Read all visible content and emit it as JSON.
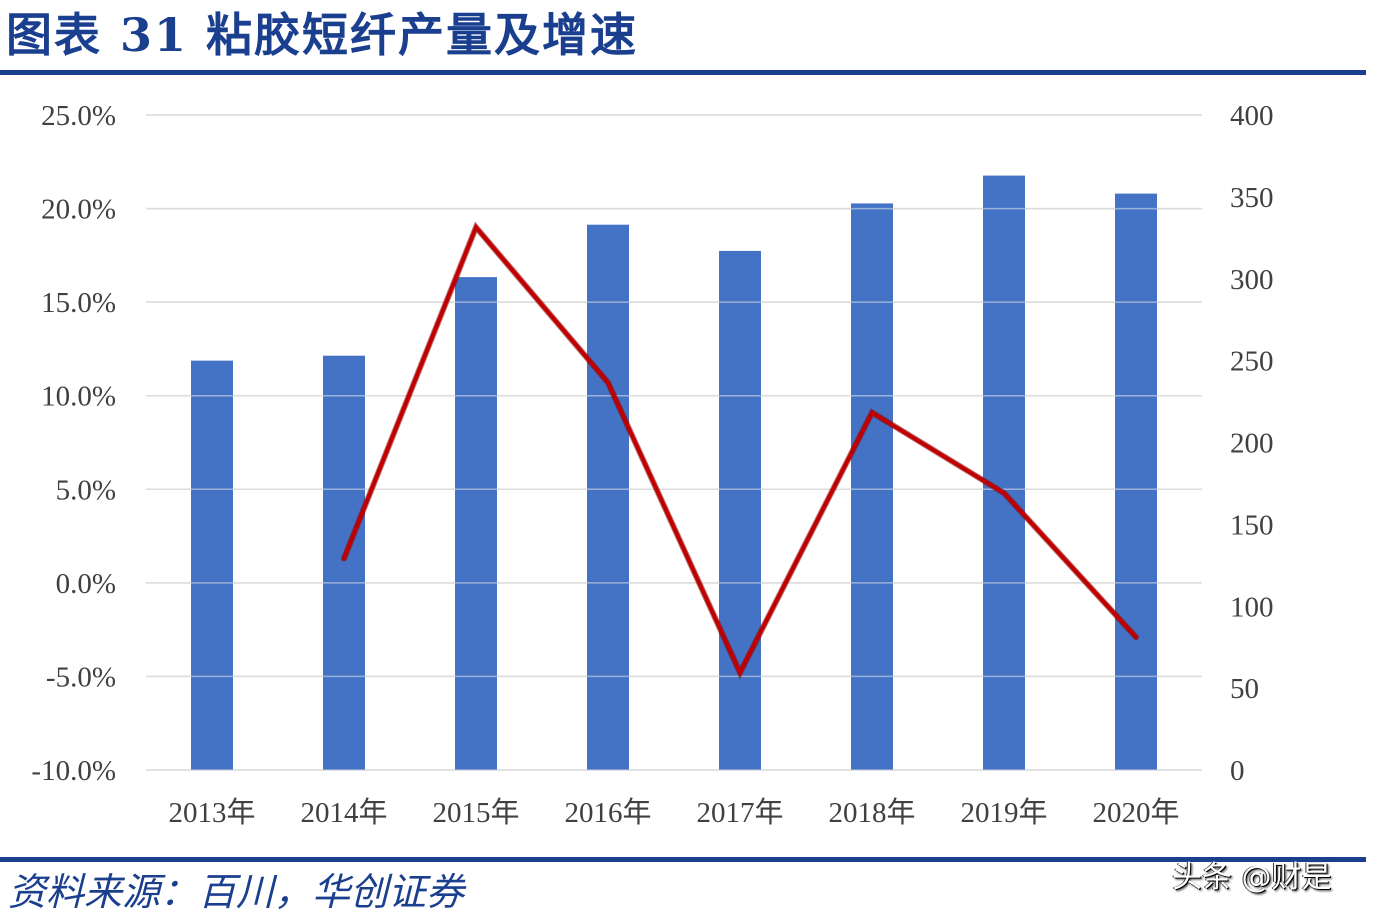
{
  "header": {
    "title": "图表 31  粘胶短纤产量及增速"
  },
  "footer": {
    "source": "资料来源：百川，华创证券",
    "watermark": "头条 @财是"
  },
  "colors": {
    "bar": "#4472C4",
    "line": "#C00000",
    "title": "#1B3F8F",
    "grid": "#D0D0D0"
  },
  "chart_data": {
    "type": "bar+line",
    "title": "粘胶短纤产量及增速",
    "categories": [
      "2013年",
      "2014年",
      "2015年",
      "2016年",
      "2017年",
      "2018年",
      "2019年",
      "2020年"
    ],
    "series": [
      {
        "name": "产量",
        "type": "bar",
        "axis": "right",
        "values": [
          250,
          253,
          301,
          333,
          317,
          346,
          363,
          352
        ]
      },
      {
        "name": "增速",
        "type": "line",
        "axis": "left",
        "values": [
          null,
          1.3,
          19.0,
          10.7,
          -4.8,
          9.1,
          4.8,
          -2.9
        ]
      }
    ],
    "y_left": {
      "ticks": [
        "25.0%",
        "20.0%",
        "15.0%",
        "10.0%",
        "5.0%",
        "0.0%",
        "-5.0%",
        "-10.0%"
      ],
      "range": [
        -10,
        25
      ]
    },
    "y_right": {
      "ticks": [
        "400",
        "350",
        "300",
        "250",
        "200",
        "150",
        "100",
        "50",
        "0"
      ],
      "range": [
        0,
        400
      ]
    },
    "xlabel": "",
    "ylabel_left": "",
    "ylabel_right": "",
    "grid": true,
    "legend": "none"
  }
}
